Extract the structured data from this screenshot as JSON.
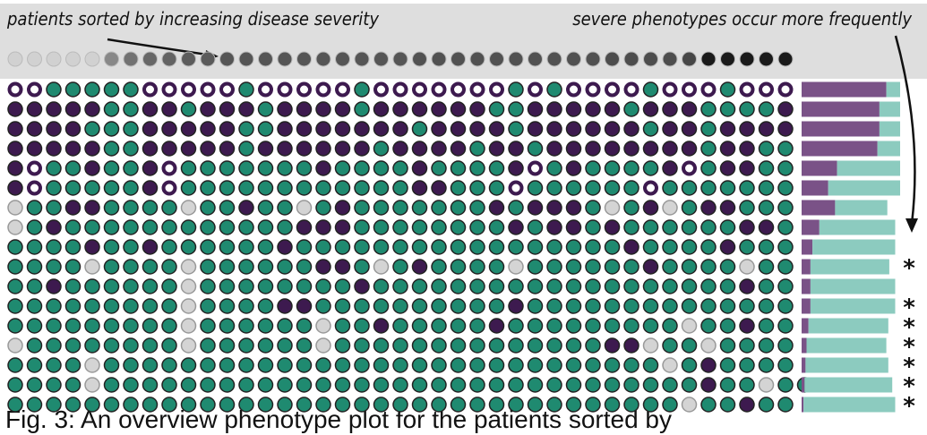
{
  "header": {
    "left_note": "patients sorted by increasing disease severity",
    "right_note": "severe phenotypes occur more frequently"
  },
  "severity": [
    0.12,
    0.12,
    0.12,
    0.12,
    0.12,
    0.45,
    0.55,
    0.6,
    0.62,
    0.65,
    0.66,
    0.68,
    0.68,
    0.68,
    0.68,
    0.68,
    0.68,
    0.68,
    0.68,
    0.68,
    0.68,
    0.7,
    0.7,
    0.7,
    0.7,
    0.7,
    0.7,
    0.7,
    0.7,
    0.7,
    0.7,
    0.72,
    0.72,
    0.72,
    0.72,
    0.75,
    0.95,
    0.95,
    0.95,
    0.95,
    0.95
  ],
  "rows": [
    {
      "dots": "ooTTTTToooooToooooToooooooToTooooToooTooo",
      "purple": 86,
      "teal": 14,
      "flag": null
    },
    {
      "dots": "PPPPPTTPPTPPPTPPPPTPPPPPPTTPPPPPTPPPTTTTP",
      "purple": 79,
      "teal": 21,
      "flag": null
    },
    {
      "dots": "PPPPTTTPPPPPTTPPPPPPPTPPPPTPPPPPPTPPTPPPP",
      "purple": 79,
      "teal": 21,
      "flag": null
    },
    {
      "dots": "PPPPPTTPPPPPTPPPPPPTPPPPTPPTPPPPPPPPTPPTT",
      "purple": 77,
      "teal": 23,
      "flag": null
    },
    {
      "dots": "PoTTPTTPoTTTTTTTPTTTTPTTTTPoTPTTTTPoTPPTT",
      "purple": 36,
      "teal": 64,
      "flag": null
    },
    {
      "dots": "PoTTTTTPoTTTTTTTTTTTTPPTTToTTTTTToTTTTTTT",
      "purple": 27,
      "teal": 73,
      "flag": null
    },
    {
      "dots": "gTTPPTTTTgTTPTTgTPTTTTTTTPTPPPTgTPgTPPTTT",
      "purple": 34,
      "teal": 53,
      "flag": null
    },
    {
      "dots": "gTPTTTTTTTTTTTTPPPTTTTTTTTPTPPTPTTTTTTPPT",
      "purple": 18,
      "teal": 77,
      "flag": null
    },
    {
      "dots": "TTTTPTTPTTTTTTPTTTTTTTTTTTTTTTTTPTTTTPTTT",
      "purple": 11,
      "teal": 84,
      "flag": null
    },
    {
      "dots": "TTTTgTTTTgTTTTTTPPTgTPTTTTgTTTTTTPTTTTgTT",
      "purple": 9,
      "teal": 80,
      "flag": "*"
    },
    {
      "dots": "TTPTTTTTTgTTTTTTTTPTTTTTTTTTTTTTTTTTTTPTT",
      "purple": 9,
      "teal": 86,
      "flag": null
    },
    {
      "dots": "TTTTTTTTTgTTTTPPTTTTTTTTTTPTTTTTTTTTTTTTT",
      "purple": 9,
      "teal": 86,
      "flag": "*"
    },
    {
      "dots": "TTTTTTTTTgTTTTTTgTTPTTTTTPTTTTTTTTTgTTPTT",
      "purple": 7,
      "teal": 81,
      "flag": "*"
    },
    {
      "dots": "gTTTTTTTTgTTTTTTgTTTTTTTTTTTTTTPPgTTgTTTT",
      "purple": 5,
      "teal": 81,
      "flag": "*"
    },
    {
      "dots": "TTTTgTTTTTTTTTTTTTTTTTTTTTTTTTTTTTgTPTTTT",
      "purple": 4,
      "teal": 84,
      "flag": "*"
    },
    {
      "dots": "TTTTgTTTTTTTTTTTTTTTTTTTTTTTTTTTTTTTPTTgTT",
      "purple": 3,
      "teal": 89,
      "flag": "*"
    },
    {
      "dots": "TTTTTTTTTTTTTTTTTTTTTTTTTTTTTTTTTTTgTTPTT",
      "purple": 2,
      "teal": 93,
      "flag": "*"
    }
  ],
  "caption": "Fig. 3: An overview phenotype plot for the patients sorted by"
}
